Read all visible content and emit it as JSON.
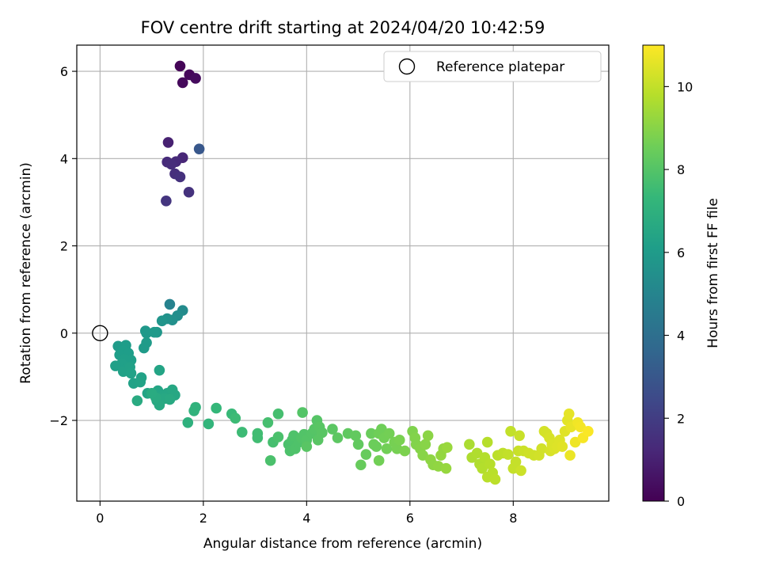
{
  "chart_data": {
    "type": "scatter",
    "title": "FOV centre drift starting at 2024/04/20 10:42:59",
    "xlabel": "Angular distance from reference (arcmin)",
    "ylabel": "Rotation from reference (arcmin)",
    "xlim": [
      -0.45,
      9.85
    ],
    "ylim": [
      -3.85,
      6.6
    ],
    "x_ticks": [
      0,
      2,
      4,
      6,
      8
    ],
    "y_ticks": [
      -2,
      0,
      2,
      4,
      6
    ],
    "x_tick_labels": [
      "0",
      "2",
      "4",
      "6",
      "8"
    ],
    "y_tick_labels": [
      "−2",
      "0",
      "2",
      "4",
      "6"
    ],
    "grid": true,
    "legend": {
      "placement": "top-right",
      "entries": [
        {
          "label": "Reference platepar",
          "marker": "open-circle"
        }
      ]
    },
    "reference_point": {
      "x": 0,
      "y": 0
    },
    "colorbar": {
      "label": "Hours from first FF file",
      "range": [
        0,
        11
      ],
      "ticks": [
        0,
        2,
        4,
        6,
        8,
        10
      ],
      "tick_labels": [
        "0",
        "2",
        "4",
        "6",
        "8",
        "10"
      ],
      "colormap": "viridis",
      "colormap_stops": [
        "#440154",
        "#482878",
        "#3e4989",
        "#31688e",
        "#26828e",
        "#1f9e89",
        "#35b779",
        "#6ece58",
        "#b5de2b",
        "#fde725"
      ]
    },
    "series": [
      {
        "columns": [
          "x",
          "y",
          "hours"
        ],
        "points": [
          [
            1.55,
            6.12,
            0.1
          ],
          [
            1.73,
            5.92,
            0.2
          ],
          [
            1.6,
            5.74,
            0.25
          ],
          [
            1.85,
            5.84,
            0.3
          ],
          [
            1.32,
            4.37,
            1.0
          ],
          [
            1.6,
            4.02,
            1.2
          ],
          [
            1.47,
            3.93,
            1.3
          ],
          [
            1.3,
            3.92,
            1.35
          ],
          [
            1.38,
            3.87,
            1.4
          ],
          [
            1.45,
            3.65,
            1.5
          ],
          [
            1.55,
            3.58,
            1.55
          ],
          [
            1.72,
            3.23,
            1.6
          ],
          [
            1.28,
            3.03,
            1.7
          ],
          [
            1.92,
            4.22,
            3.0
          ],
          [
            1.35,
            0.66,
            4.9
          ],
          [
            1.6,
            0.52,
            5.3
          ],
          [
            1.5,
            0.4,
            5.4
          ],
          [
            1.4,
            0.3,
            5.5
          ],
          [
            1.3,
            0.33,
            5.6
          ],
          [
            1.2,
            0.28,
            5.7
          ],
          [
            1.1,
            0.02,
            5.8
          ],
          [
            0.88,
            0.05,
            5.85
          ],
          [
            0.9,
            0.0,
            5.9
          ],
          [
            1.05,
            0.02,
            5.95
          ],
          [
            0.9,
            -0.22,
            6.0
          ],
          [
            0.85,
            -0.34,
            6.0
          ],
          [
            0.35,
            -0.3,
            6.0
          ],
          [
            0.5,
            -0.28,
            6.05
          ],
          [
            0.45,
            -0.4,
            6.1
          ],
          [
            0.38,
            -0.5,
            6.1
          ],
          [
            0.55,
            -0.46,
            6.1
          ],
          [
            0.6,
            -0.62,
            6.15
          ],
          [
            0.48,
            -0.6,
            6.15
          ],
          [
            0.42,
            -0.7,
            6.2
          ],
          [
            0.3,
            -0.75,
            6.2
          ],
          [
            0.52,
            -0.8,
            6.2
          ],
          [
            0.45,
            -0.88,
            6.25
          ],
          [
            0.58,
            -0.78,
            6.25
          ],
          [
            0.6,
            -0.92,
            6.3
          ],
          [
            0.65,
            -1.15,
            6.3
          ],
          [
            0.8,
            -1.02,
            6.3
          ],
          [
            0.78,
            -1.12,
            6.35
          ],
          [
            1.15,
            -0.85,
            6.4
          ],
          [
            0.92,
            -1.38,
            6.4
          ],
          [
            1.05,
            -1.4,
            6.45
          ],
          [
            1.12,
            -1.32,
            6.45
          ],
          [
            1.2,
            -1.45,
            6.5
          ],
          [
            1.3,
            -1.38,
            6.5
          ],
          [
            1.4,
            -1.3,
            6.55
          ],
          [
            1.45,
            -1.42,
            6.55
          ],
          [
            1.25,
            -1.5,
            6.6
          ],
          [
            1.1,
            -1.55,
            6.6
          ],
          [
            1.15,
            -1.65,
            6.65
          ],
          [
            1.35,
            -1.52,
            6.65
          ],
          [
            0.72,
            -1.55,
            6.7
          ],
          [
            1.08,
            -1.48,
            6.7
          ],
          [
            1.0,
            -1.38,
            6.75
          ],
          [
            1.7,
            -2.05,
            7.0
          ],
          [
            1.82,
            -1.78,
            7.1
          ],
          [
            1.85,
            -1.7,
            7.1
          ],
          [
            2.1,
            -2.08,
            7.2
          ],
          [
            2.25,
            -1.72,
            7.3
          ],
          [
            2.55,
            -1.85,
            7.4
          ],
          [
            2.62,
            -1.95,
            7.5
          ],
          [
            2.75,
            -2.27,
            7.5
          ],
          [
            3.05,
            -2.3,
            7.6
          ],
          [
            3.05,
            -2.4,
            7.6
          ],
          [
            3.25,
            -2.05,
            7.7
          ],
          [
            3.45,
            -1.85,
            7.7
          ],
          [
            3.35,
            -2.5,
            7.7
          ],
          [
            3.3,
            -2.92,
            7.8
          ],
          [
            3.45,
            -2.38,
            7.8
          ],
          [
            3.65,
            -2.55,
            7.8
          ],
          [
            3.72,
            -2.45,
            7.85
          ],
          [
            3.68,
            -2.7,
            7.85
          ],
          [
            3.78,
            -2.65,
            7.9
          ],
          [
            3.85,
            -2.5,
            7.9
          ],
          [
            3.75,
            -2.35,
            7.9
          ],
          [
            3.9,
            -2.4,
            7.95
          ],
          [
            3.95,
            -2.32,
            7.95
          ],
          [
            3.92,
            -1.82,
            8.0
          ],
          [
            4.0,
            -2.45,
            8.0
          ],
          [
            4.1,
            -2.3,
            8.0
          ],
          [
            4.15,
            -2.2,
            8.05
          ],
          [
            4.2,
            -2.0,
            8.05
          ],
          [
            4.25,
            -2.15,
            8.1
          ],
          [
            4.3,
            -2.28,
            8.1
          ],
          [
            4.22,
            -2.45,
            8.1
          ],
          [
            4.0,
            -2.6,
            8.1
          ],
          [
            4.5,
            -2.2,
            8.15
          ],
          [
            4.6,
            -2.4,
            8.2
          ],
          [
            4.8,
            -2.3,
            8.25
          ],
          [
            4.95,
            -2.35,
            8.3
          ],
          [
            5.0,
            -2.55,
            8.3
          ],
          [
            5.05,
            -3.02,
            8.4
          ],
          [
            5.15,
            -2.78,
            8.4
          ],
          [
            5.25,
            -2.3,
            8.45
          ],
          [
            5.3,
            -2.55,
            8.5
          ],
          [
            5.35,
            -2.6,
            8.5
          ],
          [
            5.4,
            -2.3,
            8.55
          ],
          [
            5.45,
            -2.2,
            8.55
          ],
          [
            5.5,
            -2.4,
            8.6
          ],
          [
            5.4,
            -2.92,
            8.6
          ],
          [
            5.55,
            -2.65,
            8.6
          ],
          [
            5.6,
            -2.3,
            8.65
          ],
          [
            5.7,
            -2.5,
            8.7
          ],
          [
            5.75,
            -2.65,
            8.7
          ],
          [
            5.8,
            -2.45,
            8.75
          ],
          [
            5.9,
            -2.7,
            8.8
          ],
          [
            6.05,
            -2.25,
            8.85
          ],
          [
            6.1,
            -2.4,
            8.9
          ],
          [
            6.12,
            -2.55,
            8.9
          ],
          [
            6.2,
            -2.65,
            8.95
          ],
          [
            6.25,
            -2.8,
            9.0
          ],
          [
            6.3,
            -2.55,
            9.0
          ],
          [
            6.35,
            -2.35,
            9.05
          ],
          [
            6.4,
            -2.9,
            9.1
          ],
          [
            6.45,
            -3.02,
            9.1
          ],
          [
            6.55,
            -3.05,
            9.15
          ],
          [
            6.6,
            -2.8,
            9.2
          ],
          [
            6.65,
            -2.65,
            9.2
          ],
          [
            6.7,
            -3.1,
            9.25
          ],
          [
            6.72,
            -2.62,
            9.3
          ],
          [
            7.15,
            -2.55,
            9.6
          ],
          [
            7.2,
            -2.85,
            9.65
          ],
          [
            7.3,
            -2.75,
            9.7
          ],
          [
            7.35,
            -3.0,
            9.7
          ],
          [
            7.4,
            -3.1,
            9.75
          ],
          [
            7.45,
            -2.85,
            9.75
          ],
          [
            7.5,
            -2.5,
            9.8
          ],
          [
            7.55,
            -3.0,
            9.8
          ],
          [
            7.5,
            -3.3,
            9.85
          ],
          [
            7.6,
            -3.2,
            9.85
          ],
          [
            7.65,
            -3.35,
            9.9
          ],
          [
            7.7,
            -2.8,
            9.9
          ],
          [
            7.8,
            -2.75,
            9.95
          ],
          [
            7.9,
            -2.78,
            10.0
          ],
          [
            7.95,
            -2.25,
            10.0
          ],
          [
            8.0,
            -3.1,
            10.05
          ],
          [
            8.05,
            -2.95,
            10.05
          ],
          [
            8.1,
            -2.7,
            10.1
          ],
          [
            8.12,
            -2.35,
            10.1
          ],
          [
            8.15,
            -3.15,
            10.15
          ],
          [
            8.2,
            -2.7,
            10.15
          ],
          [
            8.3,
            -2.75,
            10.2
          ],
          [
            8.4,
            -2.8,
            10.2
          ],
          [
            8.5,
            -2.8,
            10.25
          ],
          [
            8.55,
            -2.65,
            10.25
          ],
          [
            8.6,
            -2.25,
            10.3
          ],
          [
            8.65,
            -2.3,
            10.3
          ],
          [
            8.7,
            -2.4,
            10.35
          ],
          [
            8.72,
            -2.7,
            10.35
          ],
          [
            8.75,
            -2.55,
            10.4
          ],
          [
            8.8,
            -2.65,
            10.4
          ],
          [
            8.85,
            -2.6,
            10.45
          ],
          [
            8.9,
            -2.45,
            10.45
          ],
          [
            8.95,
            -2.6,
            10.5
          ],
          [
            9.0,
            -2.25,
            10.5
          ],
          [
            9.05,
            -2.0,
            10.55
          ],
          [
            9.08,
            -1.85,
            10.6
          ],
          [
            9.12,
            -2.15,
            10.65
          ],
          [
            9.1,
            -2.8,
            10.7
          ],
          [
            9.2,
            -2.5,
            10.75
          ],
          [
            9.25,
            -2.05,
            10.8
          ],
          [
            9.3,
            -2.15,
            10.85
          ],
          [
            9.35,
            -2.4,
            10.9
          ],
          [
            9.45,
            -2.25,
            10.95
          ]
        ]
      }
    ]
  }
}
